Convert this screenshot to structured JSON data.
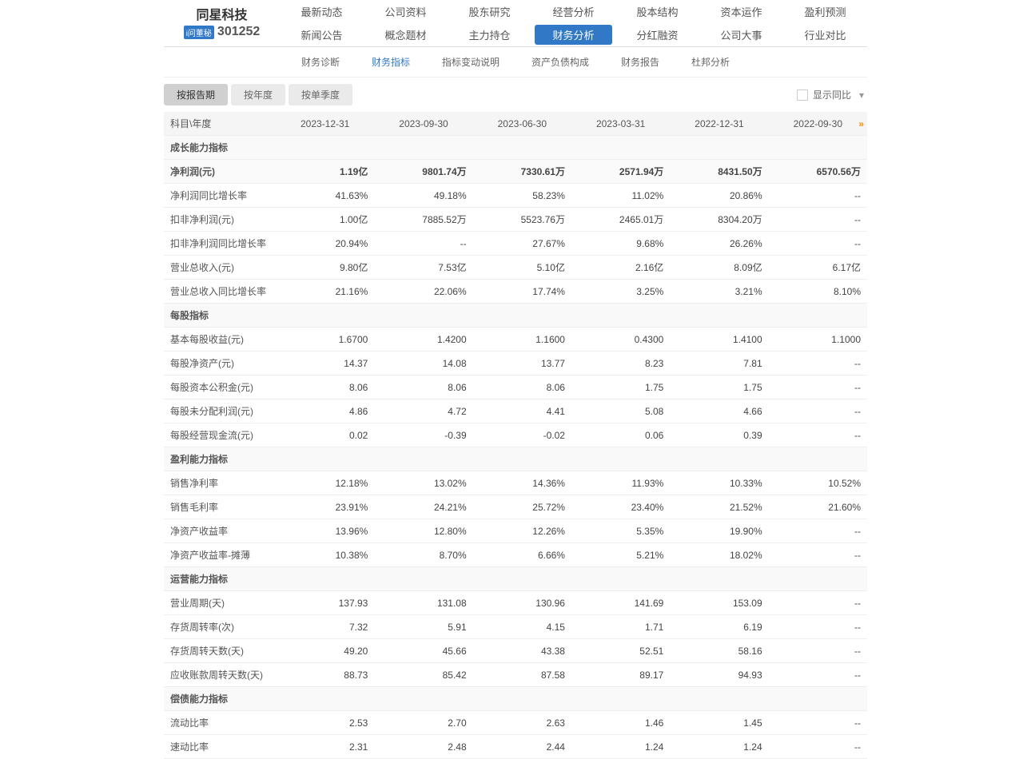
{
  "company": {
    "name": "同星科技",
    "badge": "i问董秘",
    "code": "301252"
  },
  "nav": {
    "row1": [
      "最新动态",
      "公司资料",
      "股东研究",
      "经营分析",
      "股本结构",
      "资本运作",
      "盈利预测"
    ],
    "row2": [
      "新闻公告",
      "概念题材",
      "主力持仓",
      "财务分析",
      "分红融资",
      "公司大事",
      "行业对比"
    ],
    "activeIndex": 3
  },
  "subnav": {
    "items": [
      "财务诊断",
      "财务指标",
      "指标变动说明",
      "资产负债构成",
      "财务报告",
      "杜邦分析"
    ],
    "activeIndex": 1
  },
  "tabs": {
    "items": [
      "按报告期",
      "按年度",
      "按单季度"
    ],
    "selectedIndex": 0
  },
  "yoyLabel": "显示同比",
  "table": {
    "headerLabel": "科目\\年度",
    "periods": [
      "2023-12-31",
      "2023-09-30",
      "2023-06-30",
      "2023-03-31",
      "2022-12-31",
      "2022-09-30"
    ],
    "sections": [
      {
        "title": "成长能力指标",
        "rows": [
          {
            "label": "净利润(元)",
            "bold": true,
            "highlighted": true,
            "values": [
              "1.19亿",
              "9801.74万",
              "7330.61万",
              "2571.94万",
              "8431.50万",
              "6570.56万"
            ]
          },
          {
            "label": "净利润同比增长率",
            "values": [
              "41.63%",
              "49.18%",
              "58.23%",
              "11.02%",
              "20.86%",
              "--"
            ]
          },
          {
            "label": "扣非净利润(元)",
            "values": [
              "1.00亿",
              "7885.52万",
              "5523.76万",
              "2465.01万",
              "8304.20万",
              "--"
            ]
          },
          {
            "label": "扣非净利润同比增长率",
            "values": [
              "20.94%",
              "--",
              "27.67%",
              "9.68%",
              "26.26%",
              "--"
            ]
          },
          {
            "label": "营业总收入(元)",
            "values": [
              "9.80亿",
              "7.53亿",
              "5.10亿",
              "2.16亿",
              "8.09亿",
              "6.17亿"
            ]
          },
          {
            "label": "营业总收入同比增长率",
            "values": [
              "21.16%",
              "22.06%",
              "17.74%",
              "3.25%",
              "3.21%",
              "8.10%"
            ]
          }
        ]
      },
      {
        "title": "每股指标",
        "rows": [
          {
            "label": "基本每股收益(元)",
            "values": [
              "1.6700",
              "1.4200",
              "1.1600",
              "0.4300",
              "1.4100",
              "1.1000"
            ]
          },
          {
            "label": "每股净资产(元)",
            "values": [
              "14.37",
              "14.08",
              "13.77",
              "8.23",
              "7.81",
              "--"
            ]
          },
          {
            "label": "每股资本公积金(元)",
            "values": [
              "8.06",
              "8.06",
              "8.06",
              "1.75",
              "1.75",
              "--"
            ]
          },
          {
            "label": "每股未分配利润(元)",
            "values": [
              "4.86",
              "4.72",
              "4.41",
              "5.08",
              "4.66",
              "--"
            ]
          },
          {
            "label": "每股经营现金流(元)",
            "values": [
              "0.02",
              "-0.39",
              "-0.02",
              "0.06",
              "0.39",
              "--"
            ]
          }
        ]
      },
      {
        "title": "盈利能力指标",
        "rows": [
          {
            "label": "销售净利率",
            "values": [
              "12.18%",
              "13.02%",
              "14.36%",
              "11.93%",
              "10.33%",
              "10.52%"
            ]
          },
          {
            "label": "销售毛利率",
            "values": [
              "23.91%",
              "24.21%",
              "25.72%",
              "23.40%",
              "21.52%",
              "21.60%"
            ]
          },
          {
            "label": "净资产收益率",
            "values": [
              "13.96%",
              "12.80%",
              "12.26%",
              "5.35%",
              "19.90%",
              "--"
            ]
          },
          {
            "label": "净资产收益率-摊薄",
            "values": [
              "10.38%",
              "8.70%",
              "6.66%",
              "5.21%",
              "18.02%",
              "--"
            ]
          }
        ]
      },
      {
        "title": "运营能力指标",
        "rows": [
          {
            "label": "营业周期(天)",
            "values": [
              "137.93",
              "131.08",
              "130.96",
              "141.69",
              "153.09",
              "--"
            ]
          },
          {
            "label": "存货周转率(次)",
            "values": [
              "7.32",
              "5.91",
              "4.15",
              "1.71",
              "6.19",
              "--"
            ]
          },
          {
            "label": "存货周转天数(天)",
            "values": [
              "49.20",
              "45.66",
              "43.38",
              "52.51",
              "58.16",
              "--"
            ]
          },
          {
            "label": "应收账款周转天数(天)",
            "values": [
              "88.73",
              "85.42",
              "87.58",
              "89.17",
              "94.93",
              "--"
            ]
          }
        ]
      },
      {
        "title": "偿债能力指标",
        "rows": [
          {
            "label": "流动比率",
            "values": [
              "2.53",
              "2.70",
              "2.63",
              "1.46",
              "1.45",
              "--"
            ]
          },
          {
            "label": "速动比率",
            "values": [
              "2.31",
              "2.48",
              "2.44",
              "1.24",
              "1.24",
              "--"
            ]
          }
        ]
      }
    ]
  }
}
